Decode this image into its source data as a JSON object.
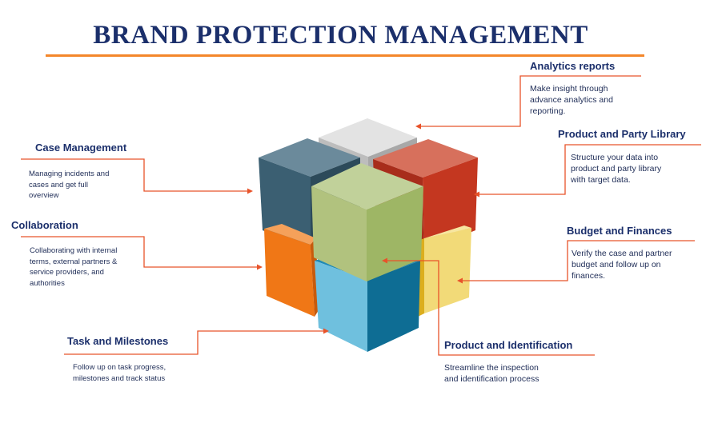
{
  "title": "BRAND PROTECTION MANAGEMENT",
  "colors": {
    "title": "#1b2f6b",
    "accent_line": "#f4862a",
    "connector": "#e8532a",
    "cube_gray": "#d9d9d9",
    "cube_slate": "#446577",
    "cube_red": "#d2452b",
    "cube_green": "#b2c27a",
    "cube_orange": "#ef7a16",
    "cube_blue": "#2b93c0",
    "cube_yellow": "#f0d365"
  },
  "modules": [
    {
      "id": "analytics",
      "heading": "Analytics  reports",
      "description": "Make insight through\nadvance analytics and\nreporting."
    },
    {
      "id": "library",
      "heading": "Product and Party Library",
      "description": "Structure your data into\nproduct and party library\nwith target data."
    },
    {
      "id": "budget",
      "heading": "Budget and Finances",
      "description": "Verify the case and partner\nbudget and follow up on\nfinances."
    },
    {
      "id": "identification",
      "heading": "Product and Identification",
      "description": "Streamline the inspection\nand identification process"
    },
    {
      "id": "case",
      "heading": "Case Management",
      "description": "Managing  incidents  and\ncases  and  get  full\noverview"
    },
    {
      "id": "collaboration",
      "heading": "Collaboration",
      "description": "Collaborating  with  internal\nterms,  external  partners  &\nservice  providers,  and\nauthorities"
    },
    {
      "id": "tasks",
      "heading": "Task and Milestones",
      "description": "Follow  up  on  task  progress,\nmilestones  and  track  status"
    }
  ]
}
